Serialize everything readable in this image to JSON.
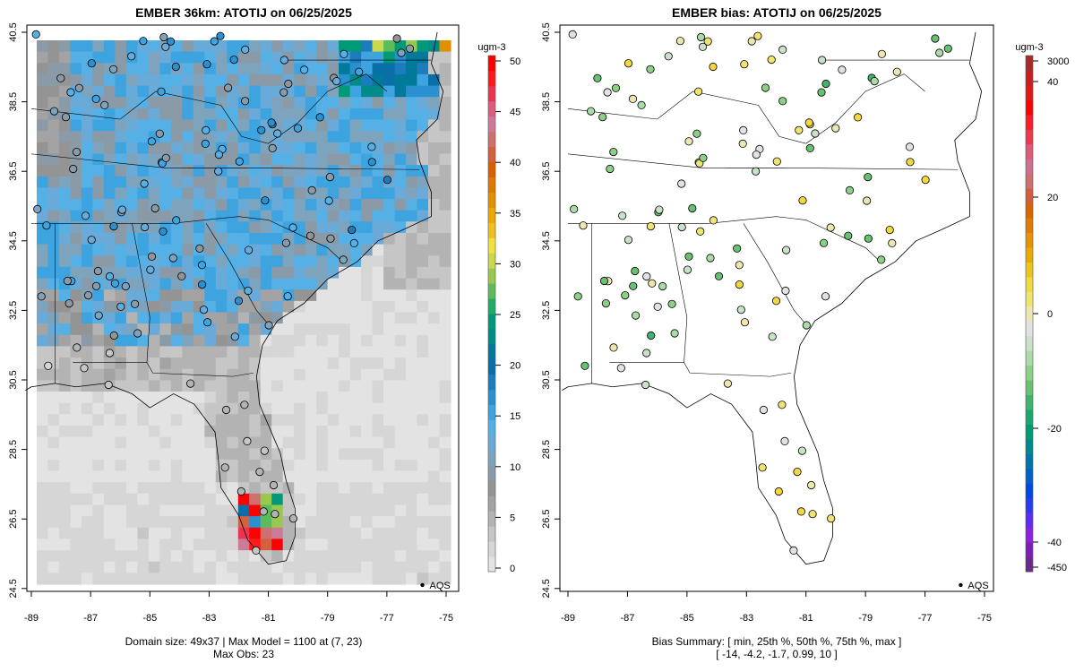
{
  "left_panel": {
    "title": "EMBER 36km: ATOTIJ on 06/25/2025",
    "footer_line1": "Domain size: 49x37 | Max Model = 1100 at (7, 23)",
    "footer_line2": "Max Obs: 23",
    "legend_label": "AQS",
    "colorbar": {
      "unit": "ugm-3",
      "ticks": [
        "0",
        "5",
        "10",
        "15",
        "20",
        "25",
        "30",
        "35",
        "40",
        "45",
        "50"
      ],
      "range": [
        0,
        50
      ]
    }
  },
  "right_panel": {
    "title": "EMBER bias: ATOTIJ on 06/25/2025",
    "footer_line1": "Bias Summary: [ min, 25th %, 50th %, 75th %, max ]",
    "footer_line2": "[ -14,   -4.2,   -1.7,   0.99,   10 ]",
    "legend_label": "AQS",
    "colorbar": {
      "unit": "ugm-3",
      "ticks": [
        "-450",
        "-40",
        "-20",
        "0",
        "20",
        "40",
        "3000"
      ]
    }
  },
  "axes": {
    "x_ticks": [
      "-89",
      "-87",
      "-85",
      "-83",
      "-81",
      "-79",
      "-77",
      "-75"
    ],
    "y_ticks": [
      "24.5",
      "26.5",
      "28.5",
      "30.5",
      "32.5",
      "34.5",
      "36.5",
      "38.5",
      "40.5"
    ]
  },
  "colors": {
    "conc_scale": [
      "#e3e3e3",
      "#d6d6d6",
      "#c6c6c6",
      "#b3b3b3",
      "#a3a3a3",
      "#949494",
      "#8a9aa6",
      "#7ea3bd",
      "#6aaad8",
      "#55b0e6",
      "#3ea4e0",
      "#2b90d0",
      "#1d7cbd",
      "#0a6fa8",
      "#00799a",
      "#008b8b",
      "#009a78",
      "#22ab66",
      "#5cbb5a",
      "#98c850",
      "#cad84c",
      "#f0e040",
      "#f0c020",
      "#eaa800",
      "#e39000",
      "#df7a00",
      "#d86000",
      "#d46040",
      "#cc7070",
      "#cc7a9a",
      "#dc5c80",
      "#ea3450",
      "#ff1a1a",
      "#ff0000"
    ],
    "bias_scale": [
      "#6a2a8a",
      "#7e1fb4",
      "#8f20e0",
      "#5f2cf0",
      "#2a3cf0",
      "#0048e0",
      "#0060c8",
      "#0076a8",
      "#00888f",
      "#009a78",
      "#1aa870",
      "#40b46e",
      "#66c270",
      "#8ccf86",
      "#aadba6",
      "#c8e2c8",
      "#e2e2e2",
      "#ece6b0",
      "#f0e470",
      "#f0d840",
      "#ecc420",
      "#e8ac00",
      "#e39400",
      "#df7c00",
      "#d96600",
      "#d0603c",
      "#cc7070",
      "#cc7090",
      "#dd5a7c",
      "#ea3a50",
      "#fa1c28",
      "#ff0000",
      "#e01818",
      "#c82020",
      "#a52a2a"
    ]
  }
}
